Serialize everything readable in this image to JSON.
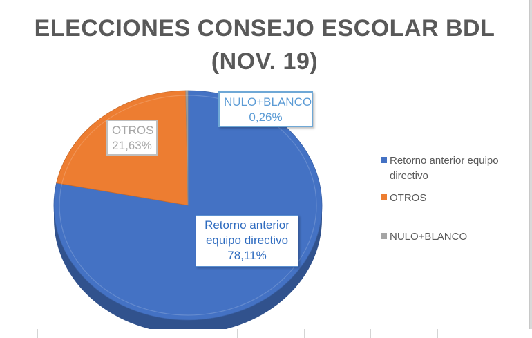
{
  "chart_data": {
    "type": "pie",
    "title": "ELECCIONES CONSEJO ESCOLAR BDL",
    "subtitle": "(NOV. 19)",
    "slices": [
      {
        "name": "Retorno anterior equipo directivo",
        "value": 78.11,
        "label": "78,11%",
        "color": "#4472c4"
      },
      {
        "name": "OTROS",
        "value": 21.63,
        "label": "21,63%",
        "color": "#ed7d31"
      },
      {
        "name": "NULO+BLANCO",
        "value": 0.26,
        "label": "0,26%",
        "color": "#a5a5a5"
      }
    ],
    "legend_position": "right",
    "data_label_lines": {
      "retorno": [
        "Retorno anterior",
        "equipo directivo"
      ],
      "otros": [
        "OTROS"
      ],
      "nulo": [
        "NULO+BLANCO"
      ]
    },
    "legend_lines": {
      "retorno": [
        "Retorno anterior equipo",
        "directivo"
      ]
    }
  }
}
